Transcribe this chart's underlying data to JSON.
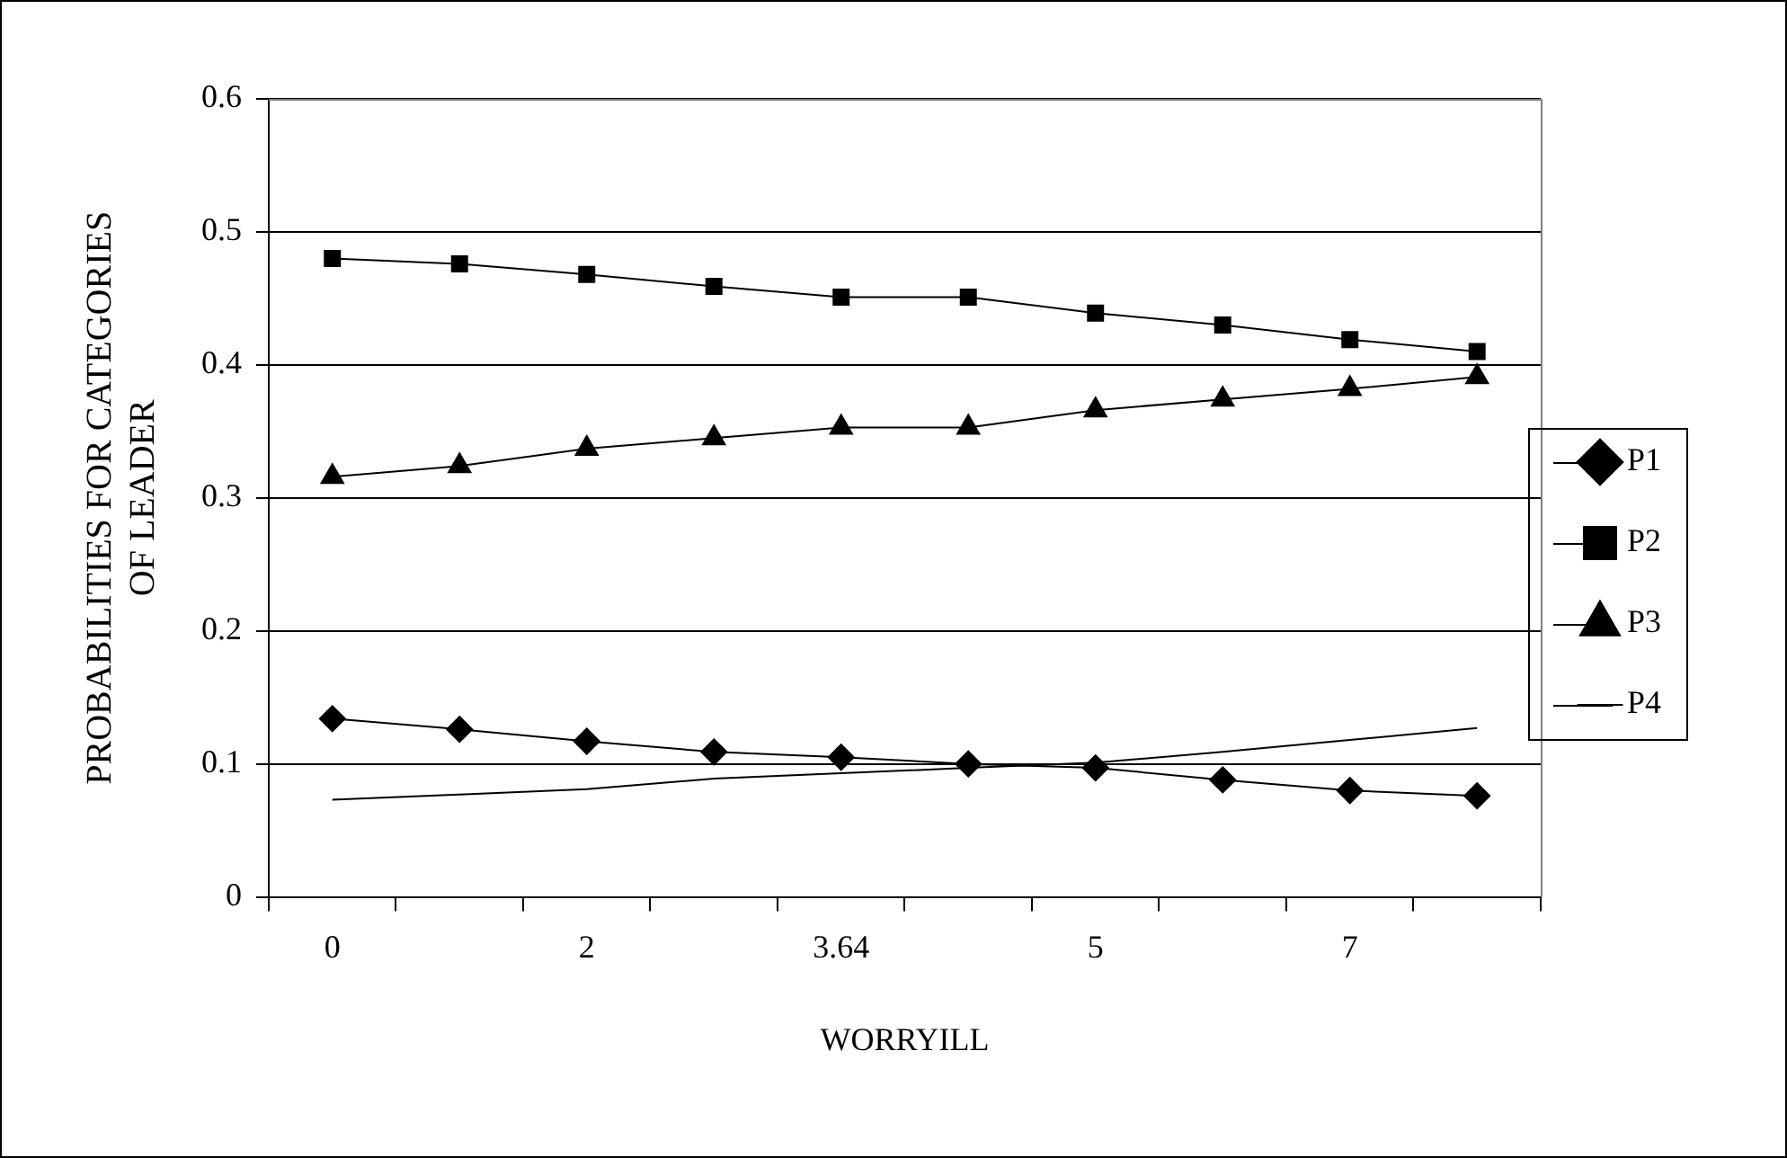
{
  "chart_data": {
    "type": "line",
    "xlabel": "WORRYILL",
    "ylabel": "PROBABILITIES FOR CATEGORIES OF LEADER",
    "categories": [
      "0",
      null,
      "2",
      null,
      "3.64",
      null,
      "5",
      null,
      "7",
      null
    ],
    "series": [
      {
        "name": "P1",
        "color": "#000000",
        "marker": "diamond",
        "values": [
          0.134,
          0.126,
          0.117,
          0.109,
          0.105,
          0.1,
          0.097,
          0.088,
          0.08,
          0.076
        ]
      },
      {
        "name": "P2",
        "color": "#000000",
        "marker": "square",
        "values": [
          0.48,
          0.476,
          0.468,
          0.459,
          0.451,
          0.451,
          0.439,
          0.43,
          0.419,
          0.41
        ]
      },
      {
        "name": "P3",
        "color": "#000000",
        "marker": "triangle",
        "values": [
          0.316,
          0.324,
          0.337,
          0.345,
          0.353,
          0.353,
          0.366,
          0.374,
          0.382,
          0.391
        ]
      },
      {
        "name": "P4",
        "color": "#000000",
        "marker": "none",
        "values": [
          0.073,
          0.077,
          0.081,
          0.089,
          0.093,
          0.097,
          0.101,
          0.109,
          0.118,
          0.127
        ]
      }
    ],
    "ylim": [
      0,
      0.6
    ],
    "yticks": [
      0,
      0.1,
      0.2,
      0.3,
      0.4,
      0.5,
      0.6
    ],
    "grid": "y",
    "legend": "right"
  }
}
